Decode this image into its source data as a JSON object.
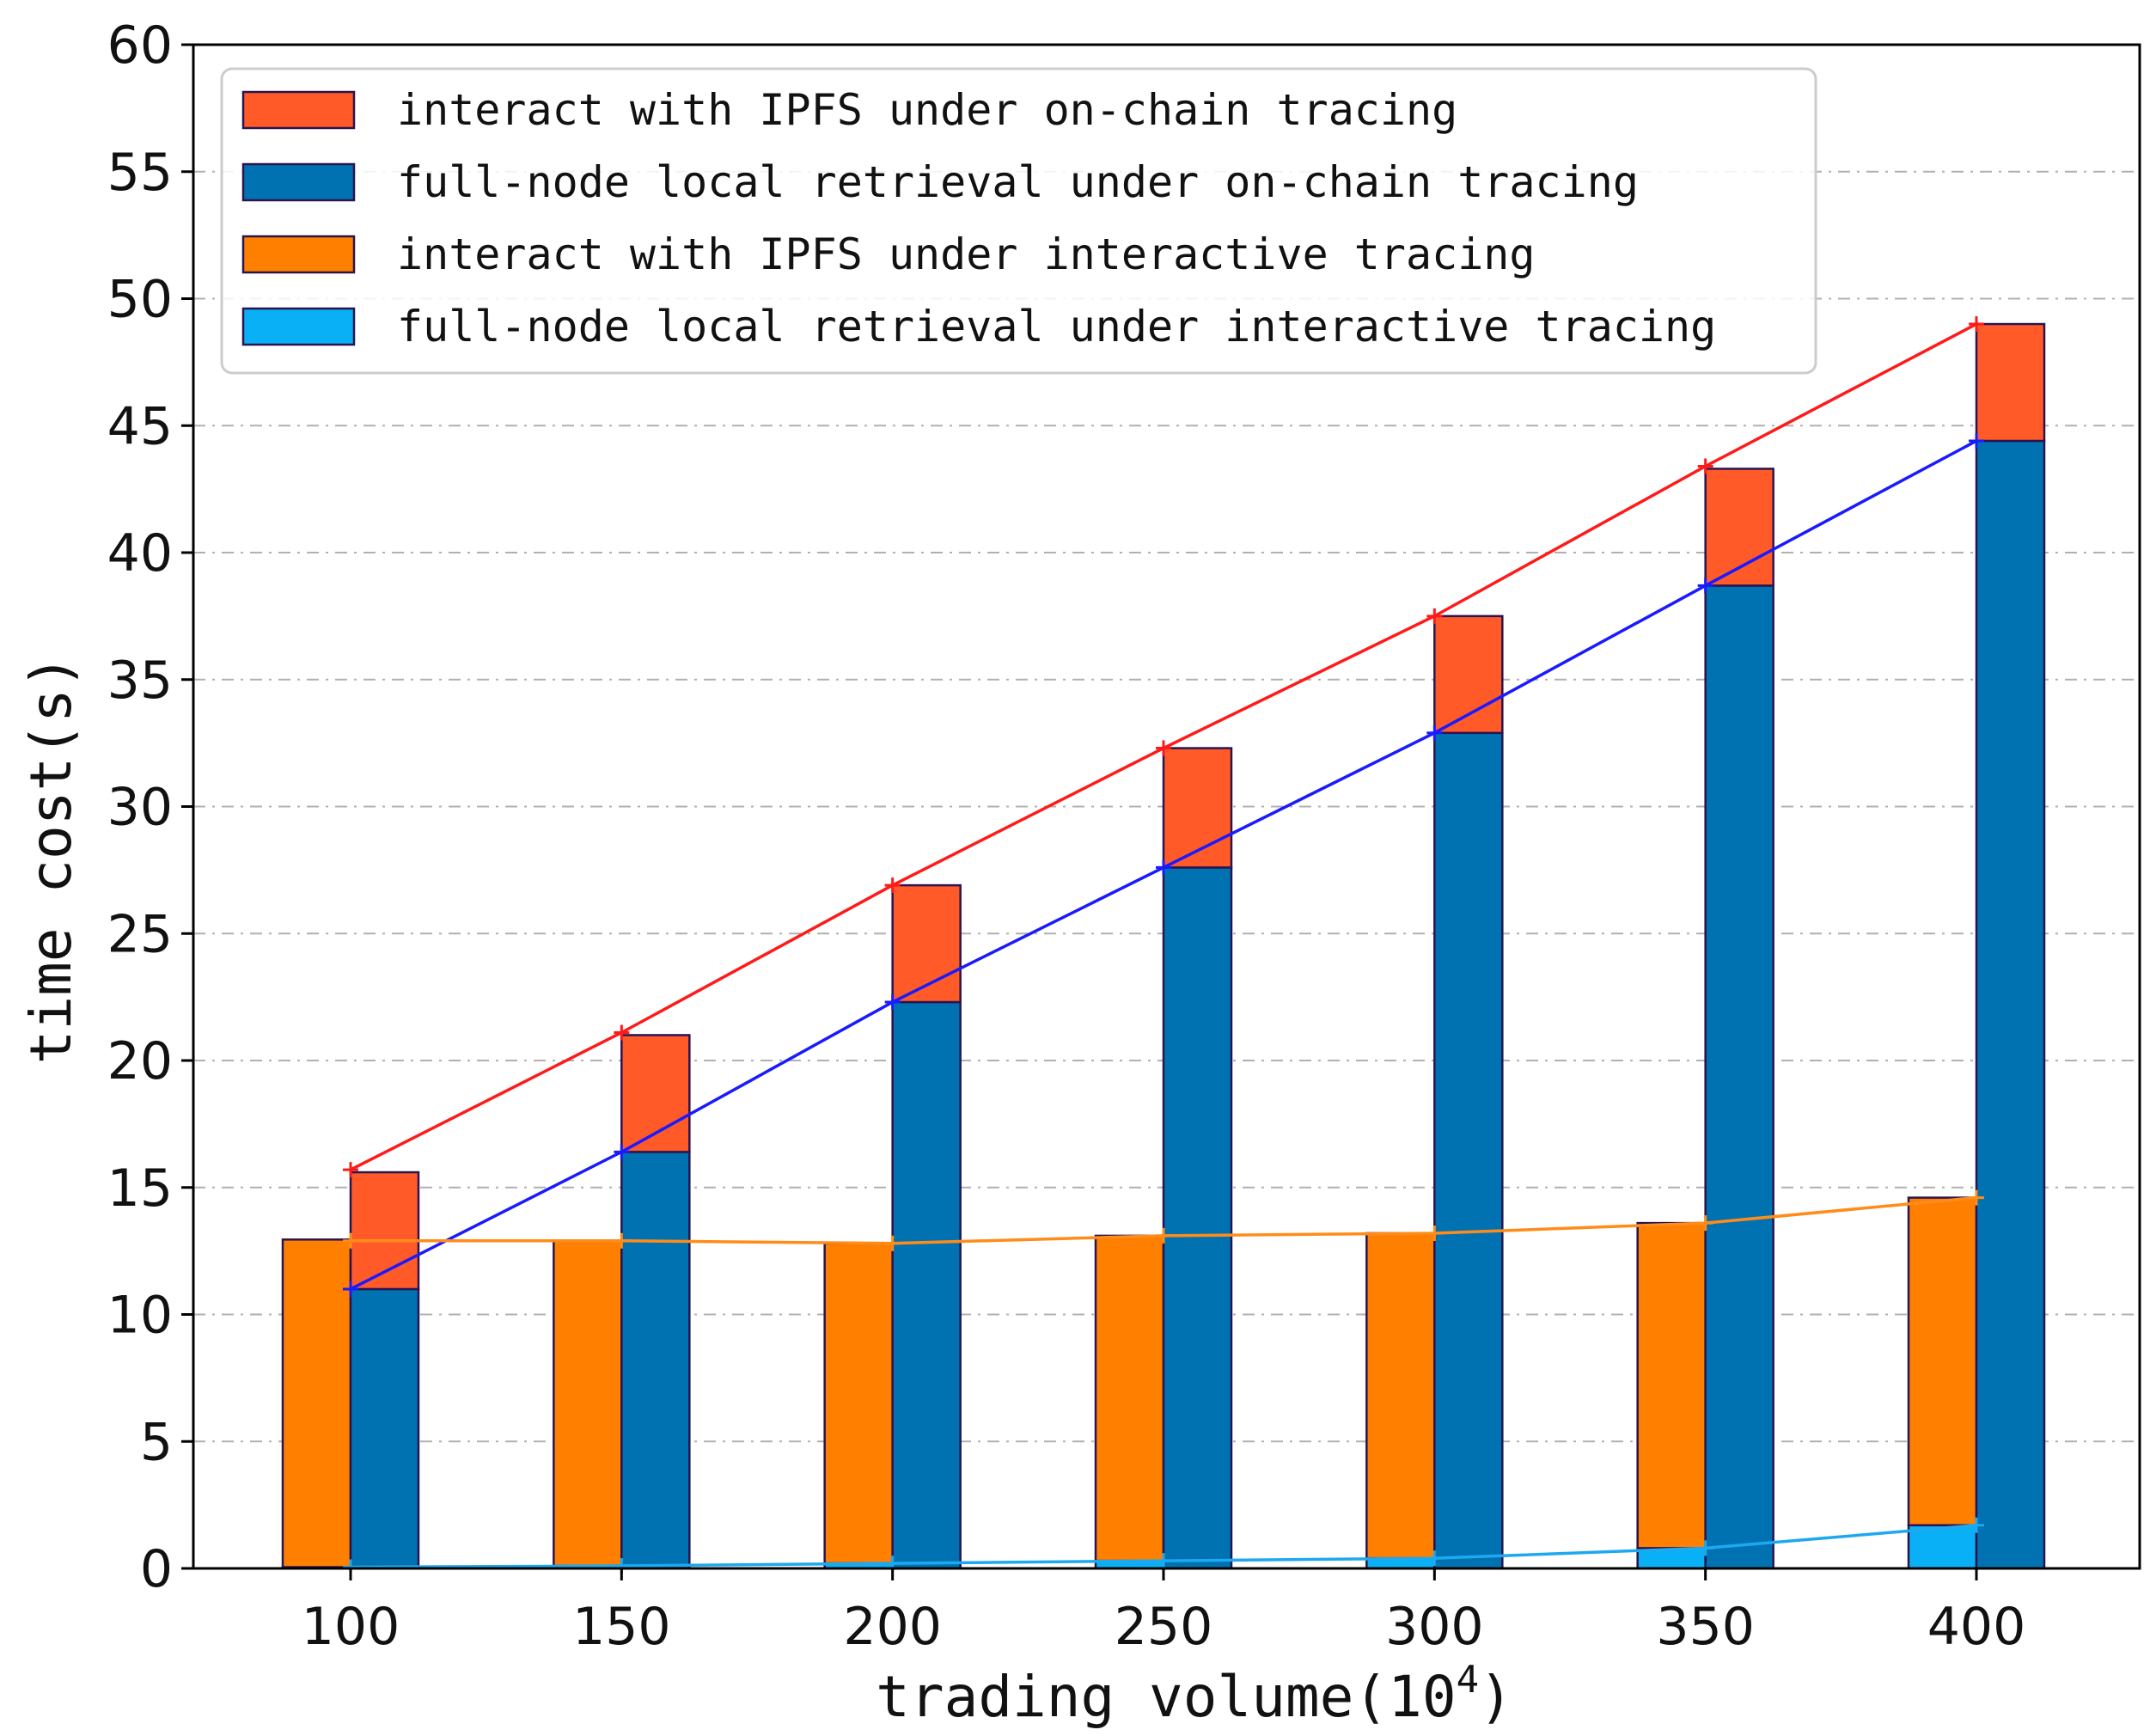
{
  "chart_data": {
    "type": "bar",
    "xlabel": "trading volume(10",
    "xlabel_superscript": "4",
    "xlabel_close": ")",
    "ylabel": "time cost(s)",
    "ylim": [
      0,
      60
    ],
    "yticks": [
      "0",
      "5",
      "10",
      "15",
      "20",
      "25",
      "30",
      "35",
      "40",
      "45",
      "50",
      "55",
      "60"
    ],
    "categories": [
      "100",
      "150",
      "200",
      "250",
      "300",
      "350",
      "400"
    ],
    "grid": "horizontal dashed",
    "legend_position": "top-left",
    "series": [
      {
        "name": "interact with IPFS under on-chain tracing",
        "group": "on-chain",
        "stack": "top",
        "color": "#FF5A28",
        "values": [
          4.6,
          4.6,
          4.6,
          4.7,
          4.6,
          4.6,
          4.6
        ],
        "totals": [
          15.7,
          21.1,
          26.9,
          32.3,
          37.5,
          43.4,
          49.0
        ],
        "line_color": "#FF1A1A"
      },
      {
        "name": "full-node local retrieval under on-chain tracing",
        "group": "on-chain",
        "stack": "bottom",
        "color": "#0072B2",
        "values": [
          11.0,
          16.4,
          22.3,
          27.6,
          32.9,
          38.7,
          44.4
        ],
        "line_color": "#1A1AFF"
      },
      {
        "name": "interact with IPFS under interactive tracing",
        "group": "interactive",
        "stack": "top",
        "color": "#FF7F00",
        "values": [
          12.9,
          12.8,
          12.6,
          12.8,
          12.8,
          12.8,
          12.9
        ],
        "totals": [
          12.9,
          12.9,
          12.8,
          13.1,
          13.2,
          13.6,
          14.6
        ],
        "line_color": "#FF8C1A"
      },
      {
        "name": "full-node local retrieval under interactive tracing",
        "group": "interactive",
        "stack": "bottom",
        "color": "#0AB0F5",
        "values": [
          0.05,
          0.1,
          0.2,
          0.3,
          0.4,
          0.8,
          1.7
        ],
        "line_color": "#1EA8F0"
      }
    ]
  }
}
